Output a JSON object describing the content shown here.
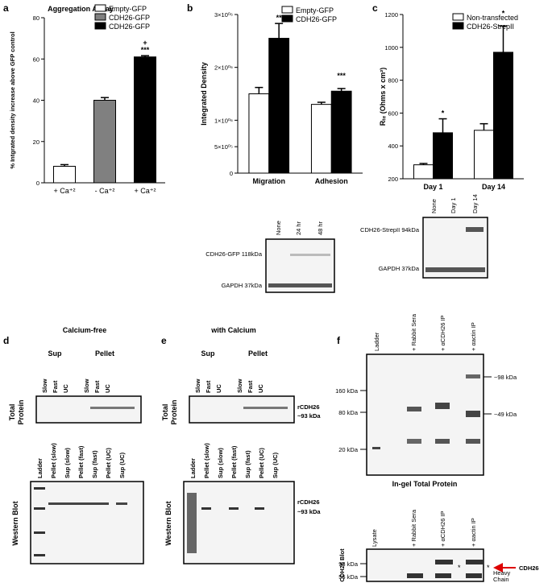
{
  "panel_letters": [
    "a",
    "b",
    "c",
    "d",
    "e",
    "f"
  ],
  "chart_data": [
    {
      "type": "bar",
      "title": "Aggregation Assay",
      "ylabel": "% Intgrated density increase above GFP control",
      "categories": [
        "+ Ca⁺²",
        "- Ca⁺²",
        "+ Ca⁺²"
      ],
      "values": [
        8,
        40,
        61
      ],
      "errors": [
        0.8,
        1.3,
        0.6
      ],
      "colors": [
        "#ffffff",
        "#808080",
        "#000000"
      ],
      "legend": [
        "Empty-GFP",
        "CDH26-GFP",
        "CDH26-GFP"
      ],
      "annotations": [
        "+",
        "***"
      ],
      "ylim": [
        0,
        80
      ],
      "yticks": [
        0,
        20,
        40,
        60,
        80
      ]
    },
    {
      "type": "bar",
      "ylabel": "Integrated Density",
      "categories": [
        "Migration",
        "Adhesion"
      ],
      "series": [
        {
          "name": "Empty-GFP",
          "color": "#ffffff",
          "values": [
            1500000,
            1300000
          ],
          "errors": [
            120000,
            40000
          ]
        },
        {
          "name": "CDH26-GFP",
          "color": "#000000",
          "values": [
            2550000,
            1550000
          ],
          "errors": [
            280000,
            50000
          ]
        }
      ],
      "annotations": [
        "**",
        "***"
      ],
      "ylim": [
        0,
        3000000
      ],
      "yticks": [
        0,
        {
          "value": 500000,
          "label": "5×10⁰⁵"
        },
        {
          "value": 1000000,
          "label": "1×10⁰⁶"
        },
        {
          "value": 2000000,
          "label": "2×10⁰⁶"
        },
        {
          "value": 3000000,
          "label": "3×10⁰⁶"
        }
      ]
    },
    {
      "type": "bar",
      "ylabel": "Rₜₑ (Ohms x cm²)",
      "categories": [
        "Day 1",
        "Day 14"
      ],
      "series": [
        {
          "name": "Non-transfected",
          "color": "#ffffff",
          "values": [
            285,
            495
          ],
          "errors": [
            8,
            40
          ]
        },
        {
          "name": "CDH26-StrepII",
          "color": "#000000",
          "values": [
            480,
            970
          ],
          "errors": [
            85,
            160
          ]
        }
      ],
      "annotations": [
        "*",
        "*"
      ],
      "ylim": [
        200,
        1200
      ],
      "yticks": [
        200,
        400,
        600,
        800,
        1000,
        1200
      ]
    }
  ],
  "blots": {
    "b": {
      "lanes": [
        "None",
        "24 hr",
        "48 hr"
      ],
      "rows": [
        "CDH26-GFP 118kDa",
        "GAPDH 37kDa"
      ]
    },
    "c": {
      "lanes": [
        "None",
        "Day 1",
        "Day 14"
      ],
      "rows": [
        "CDH26-StrepII 94kDa",
        "GAPDH 37kDa"
      ]
    },
    "d": {
      "title": "Calcium-free",
      "groups": [
        "Sup",
        "Pellet"
      ],
      "top_lanes": [
        "Slow",
        "Fast",
        "UC",
        "Slow",
        "Fast",
        "UC"
      ],
      "top_label": [
        "Total",
        "Protein"
      ],
      "bottom_lanes": [
        "Ladder",
        "Pellet (slow)",
        "Sup (slow)",
        "Pellet (fast)",
        "Sup (fast)",
        "Pellet (UC)",
        "Sup (UC)"
      ],
      "bottom_label": "Western Blot"
    },
    "e": {
      "title": "with Calcium",
      "groups": [
        "Sup",
        "Pellet"
      ],
      "top_lanes": [
        "Slow",
        "Fast",
        "UC",
        "Slow",
        "Fast",
        "UC"
      ],
      "top_label": [
        "Total",
        "Protein"
      ],
      "bottom_lanes": [
        "Ladder",
        "Pellet (slow)",
        "Sup (slow)",
        "Pellet (fast)",
        "Sup (fast)",
        "Pellet (UC)",
        "Sup (UC)"
      ],
      "bottom_label": "Western Blot",
      "marker": [
        "rCDH26",
        "~93 kDa"
      ]
    },
    "f": {
      "top_lanes": [
        "Ladder",
        "+ Rabbit Sera",
        "+ αCDH26 IP",
        "+ αactin IP"
      ],
      "markers_left": [
        "160 kDa",
        "80 kDa",
        "20 kDa"
      ],
      "markers_right": [
        "~98 kDa",
        "~49 kDa"
      ],
      "caption": "In-gel Total Protein",
      "bottom_lanes": [
        "Lysate",
        "+ Rabbit Sera",
        "+ αCDH26 IP",
        "+ αactin IP"
      ],
      "bottom_markers": [
        "93 kDa",
        "56 kDa"
      ],
      "bottom_label": "CDH26 Blot",
      "asterisks": [
        "*",
        "*"
      ],
      "arrow_label": "CDH26",
      "heavy_chain": [
        "Heavy",
        "Chain"
      ]
    }
  }
}
